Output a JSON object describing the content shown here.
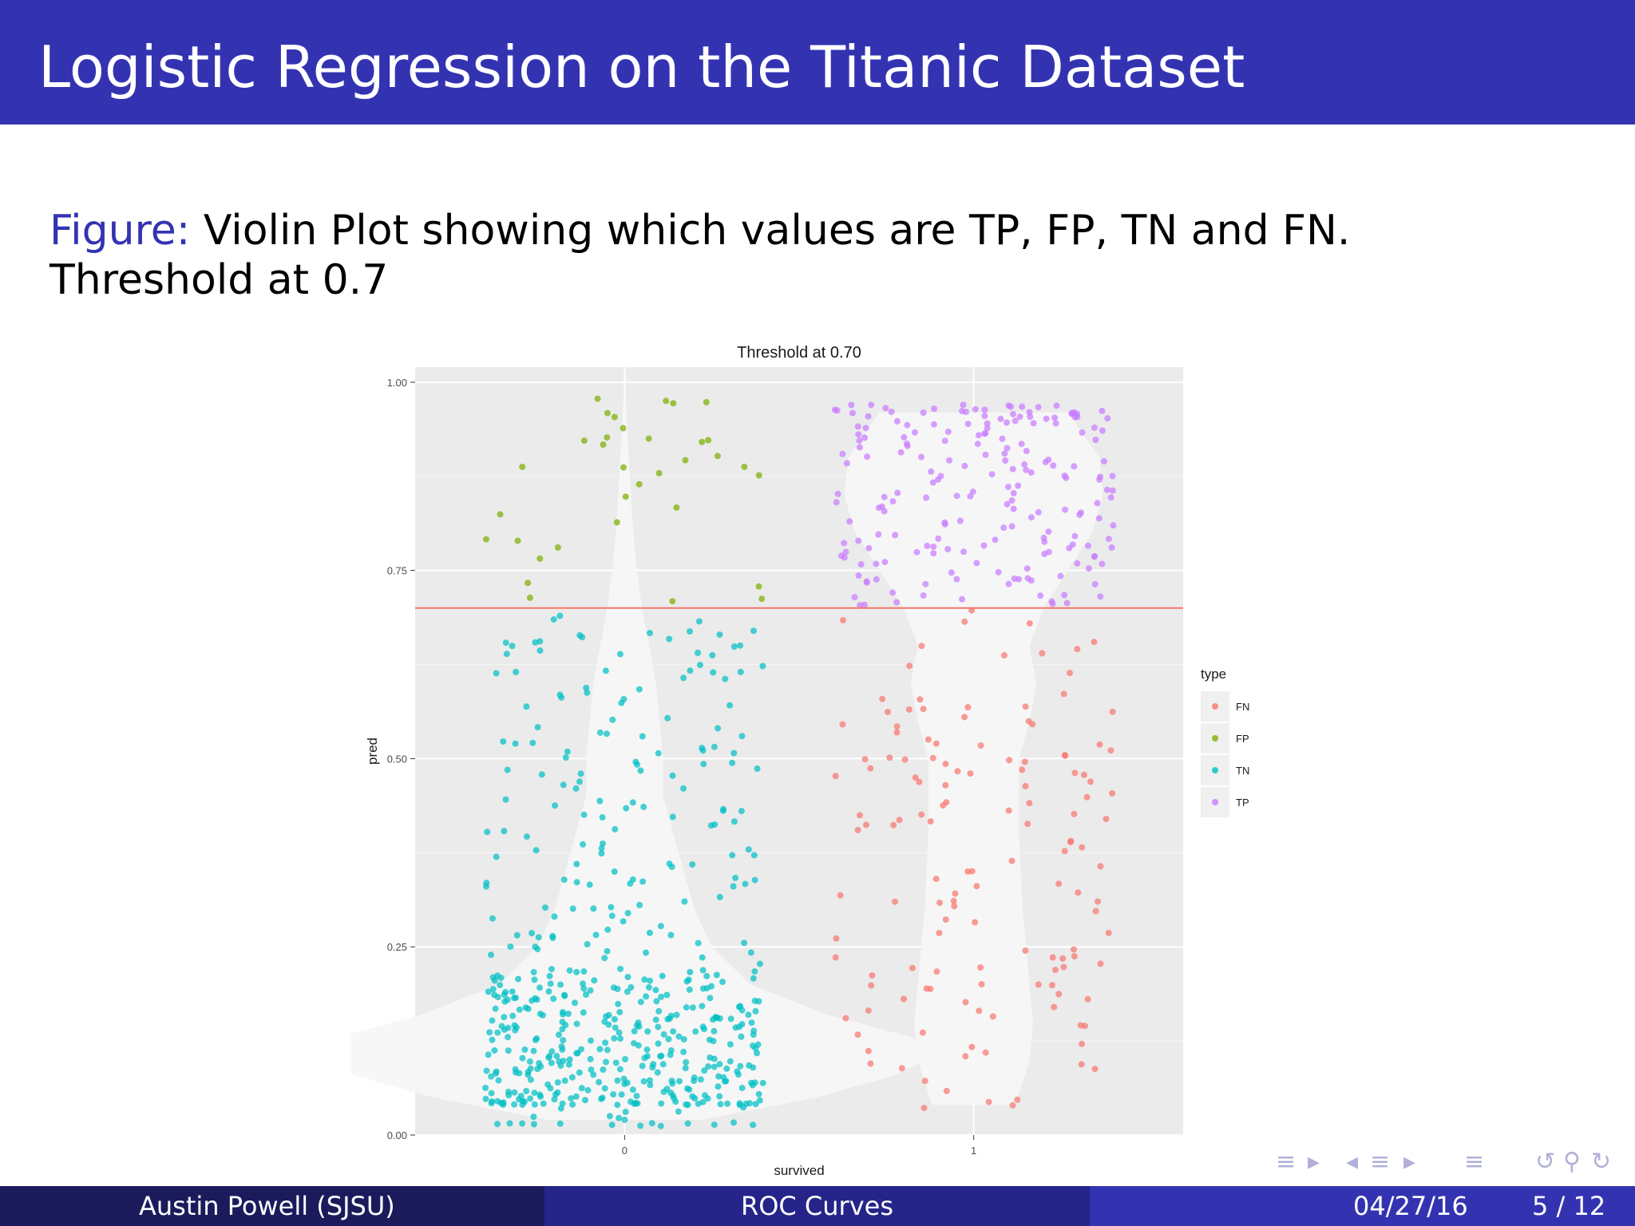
{
  "slide": {
    "title": "Logistic Regression on the Titanic Dataset",
    "caption_label": "Figure:",
    "caption_text": " Violin Plot showing which values are TP, FP, TN and FN. Threshold at 0.7"
  },
  "colors": {
    "header_bg": "#3333b2",
    "footer_left": "#1b1b5c",
    "footer_mid": "#242489",
    "footer_right": "#3333b2",
    "panel_bg": "#ebebeb",
    "violin": "#f7f7f7",
    "threshold_line": "#f8766d"
  },
  "footer": {
    "author": "Austin Powell  (SJSU)",
    "topic": "ROC Curves",
    "date": "04/27/16",
    "page": "5 / 12"
  },
  "nav": {
    "icons": [
      "frame-prev-icon",
      "section-prev-icon",
      "subsection-nav-icon",
      "search-icon"
    ]
  },
  "chart_data": {
    "type": "scatter",
    "subtype": "violin-jitter",
    "title": "Threshold at 0.70",
    "xlabel": "survived",
    "ylabel": "pred",
    "categories": [
      "0",
      "1"
    ],
    "ylim": [
      0,
      1.02
    ],
    "yticks": [
      0,
      0.25,
      0.5,
      0.75,
      1.0
    ],
    "ytick_labels": [
      "0.00",
      "0.25",
      "0.50",
      "0.75",
      "1.00"
    ],
    "threshold": 0.7,
    "legend": {
      "title": "type",
      "position": "right",
      "entries": [
        {
          "label": "FN",
          "color": "#f8766d"
        },
        {
          "label": "FP",
          "color": "#7cae00"
        },
        {
          "label": "TN",
          "color": "#00bfc4"
        },
        {
          "label": "TP",
          "color": "#c77cff"
        }
      ]
    },
    "violins": [
      {
        "category": "0",
        "profile": [
          [
            0.02,
            0.22
          ],
          [
            0.05,
            0.55
          ],
          [
            0.08,
            0.78
          ],
          [
            0.11,
            0.9
          ],
          [
            0.13,
            0.82
          ],
          [
            0.16,
            0.58
          ],
          [
            0.2,
            0.36
          ],
          [
            0.25,
            0.25
          ],
          [
            0.3,
            0.2
          ],
          [
            0.35,
            0.17
          ],
          [
            0.4,
            0.14
          ],
          [
            0.45,
            0.11
          ],
          [
            0.5,
            0.11
          ],
          [
            0.55,
            0.1
          ],
          [
            0.6,
            0.09
          ],
          [
            0.65,
            0.07
          ],
          [
            0.7,
            0.05
          ],
          [
            0.75,
            0.035
          ],
          [
            0.8,
            0.025
          ],
          [
            0.9,
            0.012
          ],
          [
            0.98,
            0.003
          ]
        ]
      },
      {
        "category": "1",
        "profile": [
          [
            0.04,
            0.12
          ],
          [
            0.1,
            0.16
          ],
          [
            0.15,
            0.17
          ],
          [
            0.2,
            0.16
          ],
          [
            0.3,
            0.14
          ],
          [
            0.4,
            0.13
          ],
          [
            0.5,
            0.13
          ],
          [
            0.55,
            0.16
          ],
          [
            0.6,
            0.18
          ],
          [
            0.65,
            0.16
          ],
          [
            0.7,
            0.2
          ],
          [
            0.75,
            0.27
          ],
          [
            0.8,
            0.34
          ],
          [
            0.85,
            0.37
          ],
          [
            0.9,
            0.36
          ],
          [
            0.96,
            0.27
          ]
        ]
      }
    ],
    "series": [
      {
        "name": "FN",
        "category": "1",
        "count": 140,
        "y_range": [
          0.03,
          0.7
        ]
      },
      {
        "name": "FP",
        "category": "0",
        "count": 34,
        "y_range": [
          0.7,
          0.98
        ]
      },
      {
        "name": "TN",
        "category": "0",
        "count": 520,
        "y_range": [
          0.01,
          0.7
        ]
      },
      {
        "name": "TP",
        "category": "1",
        "count": 200,
        "y_range": [
          0.7,
          0.97
        ]
      }
    ]
  }
}
